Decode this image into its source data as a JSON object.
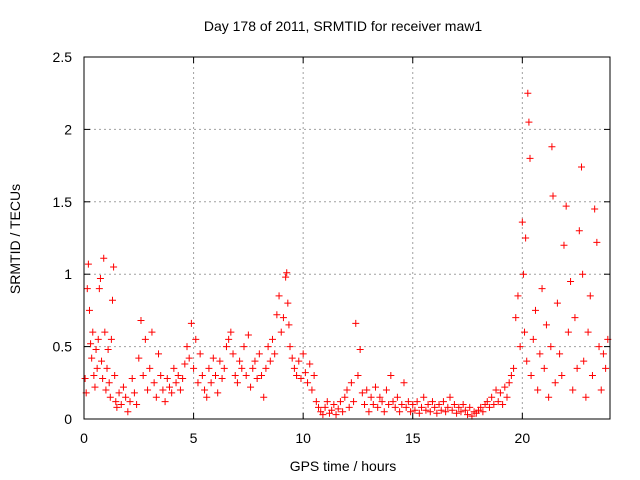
{
  "chart_data": {
    "type": "scatter",
    "title": "Day 178 of 2011, SRMTID for receiver maw1",
    "xlabel": "GPS time / hours",
    "ylabel": "SRMTID / TECUs",
    "xlim": [
      0,
      24
    ],
    "ylim": [
      0,
      2.5
    ],
    "xticks": [
      0,
      5,
      10,
      15,
      20
    ],
    "yticks": [
      0,
      0.5,
      1,
      1.5,
      2,
      2.5
    ],
    "grid": true,
    "legend": "none",
    "marker": "+",
    "series": [
      {
        "name": "maw1",
        "color": "#ff0000",
        "points": [
          [
            0.05,
            0.28
          ],
          [
            0.1,
            0.18
          ],
          [
            0.15,
            0.9
          ],
          [
            0.2,
            1.07
          ],
          [
            0.25,
            0.75
          ],
          [
            0.3,
            0.52
          ],
          [
            0.35,
            0.42
          ],
          [
            0.4,
            0.6
          ],
          [
            0.45,
            0.3
          ],
          [
            0.5,
            0.22
          ],
          [
            0.55,
            0.48
          ],
          [
            0.6,
            0.35
          ],
          [
            0.65,
            0.55
          ],
          [
            0.7,
            0.9
          ],
          [
            0.75,
            0.97
          ],
          [
            0.8,
            0.4
          ],
          [
            0.85,
            0.28
          ],
          [
            0.9,
            1.11
          ],
          [
            0.95,
            0.6
          ],
          [
            1.0,
            0.2
          ],
          [
            1.05,
            0.35
          ],
          [
            1.1,
            0.48
          ],
          [
            1.15,
            0.25
          ],
          [
            1.2,
            0.15
          ],
          [
            1.25,
            0.55
          ],
          [
            1.3,
            0.82
          ],
          [
            1.35,
            1.05
          ],
          [
            1.4,
            0.3
          ],
          [
            1.45,
            0.12
          ],
          [
            1.5,
            0.08
          ],
          [
            1.6,
            0.18
          ],
          [
            1.7,
            0.1
          ],
          [
            1.8,
            0.22
          ],
          [
            1.9,
            0.15
          ],
          [
            2.0,
            0.05
          ],
          [
            2.1,
            0.12
          ],
          [
            2.2,
            0.28
          ],
          [
            2.3,
            0.18
          ],
          [
            2.4,
            0.1
          ],
          [
            2.5,
            0.42
          ],
          [
            2.6,
            0.68
          ],
          [
            2.7,
            0.3
          ],
          [
            2.8,
            0.55
          ],
          [
            2.9,
            0.2
          ],
          [
            3.0,
            0.35
          ],
          [
            3.1,
            0.6
          ],
          [
            3.2,
            0.25
          ],
          [
            3.3,
            0.15
          ],
          [
            3.4,
            0.45
          ],
          [
            3.5,
            0.3
          ],
          [
            3.6,
            0.2
          ],
          [
            3.7,
            0.12
          ],
          [
            3.8,
            0.28
          ],
          [
            3.9,
            0.22
          ],
          [
            4.0,
            0.18
          ],
          [
            4.1,
            0.35
          ],
          [
            4.2,
            0.25
          ],
          [
            4.3,
            0.3
          ],
          [
            4.4,
            0.2
          ],
          [
            4.5,
            0.28
          ],
          [
            4.6,
            0.38
          ],
          [
            4.7,
            0.5
          ],
          [
            4.8,
            0.42
          ],
          [
            4.9,
            0.66
          ],
          [
            5.0,
            0.35
          ],
          [
            5.1,
            0.55
          ],
          [
            5.2,
            0.25
          ],
          [
            5.3,
            0.45
          ],
          [
            5.4,
            0.3
          ],
          [
            5.5,
            0.2
          ],
          [
            5.6,
            0.15
          ],
          [
            5.7,
            0.35
          ],
          [
            5.8,
            0.25
          ],
          [
            5.9,
            0.42
          ],
          [
            6.0,
            0.3
          ],
          [
            6.1,
            0.18
          ],
          [
            6.2,
            0.4
          ],
          [
            6.3,
            0.28
          ],
          [
            6.4,
            0.35
          ],
          [
            6.5,
            0.5
          ],
          [
            6.6,
            0.55
          ],
          [
            6.7,
            0.6
          ],
          [
            6.8,
            0.45
          ],
          [
            6.9,
            0.3
          ],
          [
            7.0,
            0.25
          ],
          [
            7.1,
            0.4
          ],
          [
            7.2,
            0.35
          ],
          [
            7.3,
            0.5
          ],
          [
            7.4,
            0.3
          ],
          [
            7.5,
            0.58
          ],
          [
            7.6,
            0.22
          ],
          [
            7.7,
            0.35
          ],
          [
            7.8,
            0.4
          ],
          [
            7.9,
            0.28
          ],
          [
            8.0,
            0.45
          ],
          [
            8.1,
            0.3
          ],
          [
            8.2,
            0.15
          ],
          [
            8.3,
            0.35
          ],
          [
            8.4,
            0.5
          ],
          [
            8.5,
            0.4
          ],
          [
            8.6,
            0.55
          ],
          [
            8.7,
            0.45
          ],
          [
            8.8,
            0.72
          ],
          [
            8.9,
            0.85
          ],
          [
            9.0,
            0.6
          ],
          [
            9.1,
            0.7
          ],
          [
            9.2,
            0.98
          ],
          [
            9.25,
            1.01
          ],
          [
            9.3,
            0.8
          ],
          [
            9.35,
            0.65
          ],
          [
            9.4,
            0.5
          ],
          [
            9.5,
            0.42
          ],
          [
            9.6,
            0.35
          ],
          [
            9.7,
            0.3
          ],
          [
            9.8,
            0.4
          ],
          [
            9.9,
            0.28
          ],
          [
            10.0,
            0.45
          ],
          [
            10.1,
            0.32
          ],
          [
            10.2,
            0.25
          ],
          [
            10.3,
            0.38
          ],
          [
            10.4,
            0.2
          ],
          [
            10.5,
            0.3
          ],
          [
            10.6,
            0.12
          ],
          [
            10.7,
            0.08
          ],
          [
            10.8,
            0.05
          ],
          [
            10.9,
            0.03
          ],
          [
            11.0,
            0.08
          ],
          [
            11.1,
            0.12
          ],
          [
            11.2,
            0.04
          ],
          [
            11.3,
            0.06
          ],
          [
            11.4,
            0.1
          ],
          [
            11.5,
            0.03
          ],
          [
            11.6,
            0.07
          ],
          [
            11.7,
            0.12
          ],
          [
            11.8,
            0.05
          ],
          [
            11.9,
            0.15
          ],
          [
            12.0,
            0.2
          ],
          [
            12.1,
            0.08
          ],
          [
            12.2,
            0.25
          ],
          [
            12.3,
            0.12
          ],
          [
            12.4,
            0.66
          ],
          [
            12.5,
            0.3
          ],
          [
            12.6,
            0.48
          ],
          [
            12.7,
            0.18
          ],
          [
            12.8,
            0.1
          ],
          [
            12.9,
            0.2
          ],
          [
            13.0,
            0.05
          ],
          [
            13.1,
            0.15
          ],
          [
            13.2,
            0.1
          ],
          [
            13.3,
            0.22
          ],
          [
            13.4,
            0.08
          ],
          [
            13.5,
            0.15
          ],
          [
            13.6,
            0.12
          ],
          [
            13.7,
            0.05
          ],
          [
            13.8,
            0.2
          ],
          [
            13.9,
            0.1
          ],
          [
            14.0,
            0.3
          ],
          [
            14.1,
            0.12
          ],
          [
            14.2,
            0.08
          ],
          [
            14.3,
            0.15
          ],
          [
            14.4,
            0.05
          ],
          [
            14.5,
            0.1
          ],
          [
            14.6,
            0.25
          ],
          [
            14.7,
            0.08
          ],
          [
            14.8,
            0.12
          ],
          [
            14.9,
            0.05
          ],
          [
            15.0,
            0.1
          ],
          [
            15.1,
            0.06
          ],
          [
            15.2,
            0.12
          ],
          [
            15.3,
            0.04
          ],
          [
            15.4,
            0.08
          ],
          [
            15.5,
            0.15
          ],
          [
            15.6,
            0.06
          ],
          [
            15.7,
            0.1
          ],
          [
            15.8,
            0.05
          ],
          [
            15.9,
            0.12
          ],
          [
            16.0,
            0.08
          ],
          [
            16.1,
            0.04
          ],
          [
            16.2,
            0.1
          ],
          [
            16.3,
            0.06
          ],
          [
            16.4,
            0.12
          ],
          [
            16.5,
            0.05
          ],
          [
            16.6,
            0.08
          ],
          [
            16.7,
            0.15
          ],
          [
            16.8,
            0.06
          ],
          [
            16.9,
            0.1
          ],
          [
            17.0,
            0.04
          ],
          [
            17.1,
            0.08
          ],
          [
            17.2,
            0.05
          ],
          [
            17.3,
            0.1
          ],
          [
            17.4,
            0.06
          ],
          [
            17.5,
            0.03
          ],
          [
            17.6,
            0.08
          ],
          [
            17.7,
            0.02
          ],
          [
            17.8,
            0.05
          ],
          [
            17.9,
            0.04
          ],
          [
            18.0,
            0.06
          ],
          [
            18.1,
            0.08
          ],
          [
            18.2,
            0.05
          ],
          [
            18.3,
            0.1
          ],
          [
            18.4,
            0.12
          ],
          [
            18.5,
            0.08
          ],
          [
            18.6,
            0.15
          ],
          [
            18.7,
            0.1
          ],
          [
            18.8,
            0.2
          ],
          [
            18.9,
            0.12
          ],
          [
            19.0,
            0.18
          ],
          [
            19.1,
            0.1
          ],
          [
            19.2,
            0.22
          ],
          [
            19.3,
            0.15
          ],
          [
            19.4,
            0.25
          ],
          [
            19.5,
            0.3
          ],
          [
            19.6,
            0.35
          ],
          [
            19.7,
            0.7
          ],
          [
            19.8,
            0.85
          ],
          [
            19.9,
            0.5
          ],
          [
            20.0,
            1.36
          ],
          [
            20.05,
            1.0
          ],
          [
            20.1,
            0.6
          ],
          [
            20.15,
            1.25
          ],
          [
            20.2,
            0.4
          ],
          [
            20.25,
            2.25
          ],
          [
            20.3,
            2.05
          ],
          [
            20.35,
            1.8
          ],
          [
            20.4,
            0.3
          ],
          [
            20.5,
            0.55
          ],
          [
            20.6,
            0.75
          ],
          [
            20.7,
            0.2
          ],
          [
            20.8,
            0.45
          ],
          [
            20.9,
            0.9
          ],
          [
            21.0,
            0.35
          ],
          [
            21.1,
            0.65
          ],
          [
            21.2,
            0.15
          ],
          [
            21.3,
            0.5
          ],
          [
            21.35,
            1.88
          ],
          [
            21.4,
            1.54
          ],
          [
            21.5,
            0.25
          ],
          [
            21.6,
            0.8
          ],
          [
            21.7,
            0.45
          ],
          [
            21.8,
            0.3
          ],
          [
            21.9,
            1.2
          ],
          [
            22.0,
            1.47
          ],
          [
            22.1,
            0.6
          ],
          [
            22.2,
            0.95
          ],
          [
            22.3,
            0.2
          ],
          [
            22.4,
            0.7
          ],
          [
            22.5,
            0.35
          ],
          [
            22.6,
            1.3
          ],
          [
            22.7,
            1.74
          ],
          [
            22.75,
            1.0
          ],
          [
            22.8,
            0.4
          ],
          [
            22.9,
            0.15
          ],
          [
            23.0,
            0.6
          ],
          [
            23.1,
            0.85
          ],
          [
            23.2,
            0.3
          ],
          [
            23.3,
            1.45
          ],
          [
            23.4,
            1.22
          ],
          [
            23.5,
            0.5
          ],
          [
            23.6,
            0.2
          ],
          [
            23.7,
            0.45
          ],
          [
            23.8,
            0.35
          ],
          [
            23.9,
            0.55
          ]
        ]
      }
    ]
  }
}
